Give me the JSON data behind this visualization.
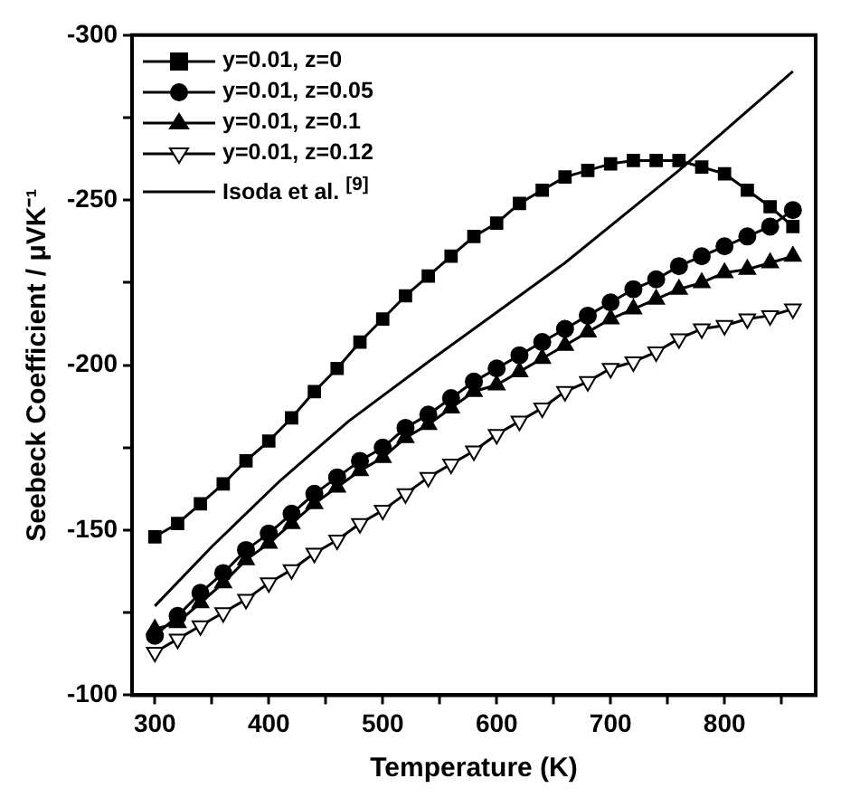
{
  "chart_data": {
    "type": "line",
    "xlabel": "Temperature (K)",
    "ylabel": "Seebeck Coefficient / μVK⁻¹",
    "xlim": [
      280,
      880
    ],
    "ylim": [
      -100,
      -300
    ],
    "xticks": [
      300,
      {
        "value": 350,
        "label": null
      },
      400,
      {
        "value": 450,
        "label": null
      },
      500,
      {
        "value": 550,
        "label": null
      },
      600,
      {
        "value": 650,
        "label": null
      },
      700,
      {
        "value": 750,
        "label": null
      },
      800,
      {
        "value": 850,
        "label": null
      }
    ],
    "yticks": [
      -100,
      {
        "value": -125,
        "label": null
      },
      -150,
      {
        "value": -175,
        "label": null
      },
      -200,
      {
        "value": -225,
        "label": null
      },
      -250,
      {
        "value": -275,
        "label": null
      },
      -300
    ],
    "x": [
      300,
      320,
      340,
      360,
      380,
      400,
      420,
      440,
      460,
      480,
      500,
      520,
      540,
      560,
      580,
      600,
      620,
      640,
      660,
      680,
      700,
      720,
      740,
      760,
      780,
      800,
      820,
      840,
      860
    ],
    "legend": "top left",
    "grid": false,
    "line_style": "solid",
    "series": [
      {
        "name": "y=0.01, z=0",
        "color": "#000000",
        "marker": "square",
        "values": [
          -148,
          -152,
          -158,
          -164,
          -171,
          -177,
          -184,
          -192,
          -199,
          -207,
          -214,
          -221,
          -227,
          -233,
          -239,
          -243,
          -249,
          -253,
          -257,
          -259,
          -261,
          -262,
          -262,
          -262,
          -260,
          -258,
          -253,
          -248,
          -242
        ]
      },
      {
        "name": "y=0.01, z=0.05",
        "color": "#000000",
        "marker": "circle",
        "values": [
          -118,
          -124,
          -131,
          -137,
          -144,
          -149,
          -155,
          -161,
          -166,
          -171,
          -175,
          -181,
          -185,
          -190,
          -195,
          -199,
          -203,
          -207,
          -211,
          -215,
          -219,
          -223,
          -226,
          -230,
          -233,
          -236,
          -239,
          -242,
          -247
        ]
      },
      {
        "name": "y=0.01, z=0.1",
        "color": "#000000",
        "marker": "triangle",
        "values": [
          -120,
          -122,
          -128,
          -134,
          -141,
          -146,
          -152,
          -158,
          -163,
          -168,
          -172,
          -178,
          -182,
          -187,
          -192,
          -194,
          -198,
          -202,
          -206,
          -210,
          -214,
          -217,
          -220,
          -223,
          -225,
          -228,
          -229,
          -231,
          -233
        ]
      },
      {
        "name": "y=0.01, z=0.12",
        "color": "#000000",
        "marker": "triangle-down",
        "values": [
          -113,
          -117,
          -121,
          -125,
          -129,
          -134,
          -138,
          -143,
          -147,
          -152,
          -156,
          -161,
          -166,
          -170,
          -174,
          -179,
          -183,
          -187,
          -192,
          -195,
          -199,
          -201,
          -204,
          -208,
          -211,
          -212,
          -214,
          -215,
          -217
        ]
      },
      {
        "name": "Isoda et al. $^{[9]}$",
        "color": "#000000",
        "marker": "none",
        "x": [
          300,
          350,
          410,
          470,
          540,
          660,
          760,
          860
        ],
        "values": [
          -127,
          -145,
          -165,
          -183,
          -201,
          -231,
          -259,
          -289
        ]
      }
    ]
  }
}
